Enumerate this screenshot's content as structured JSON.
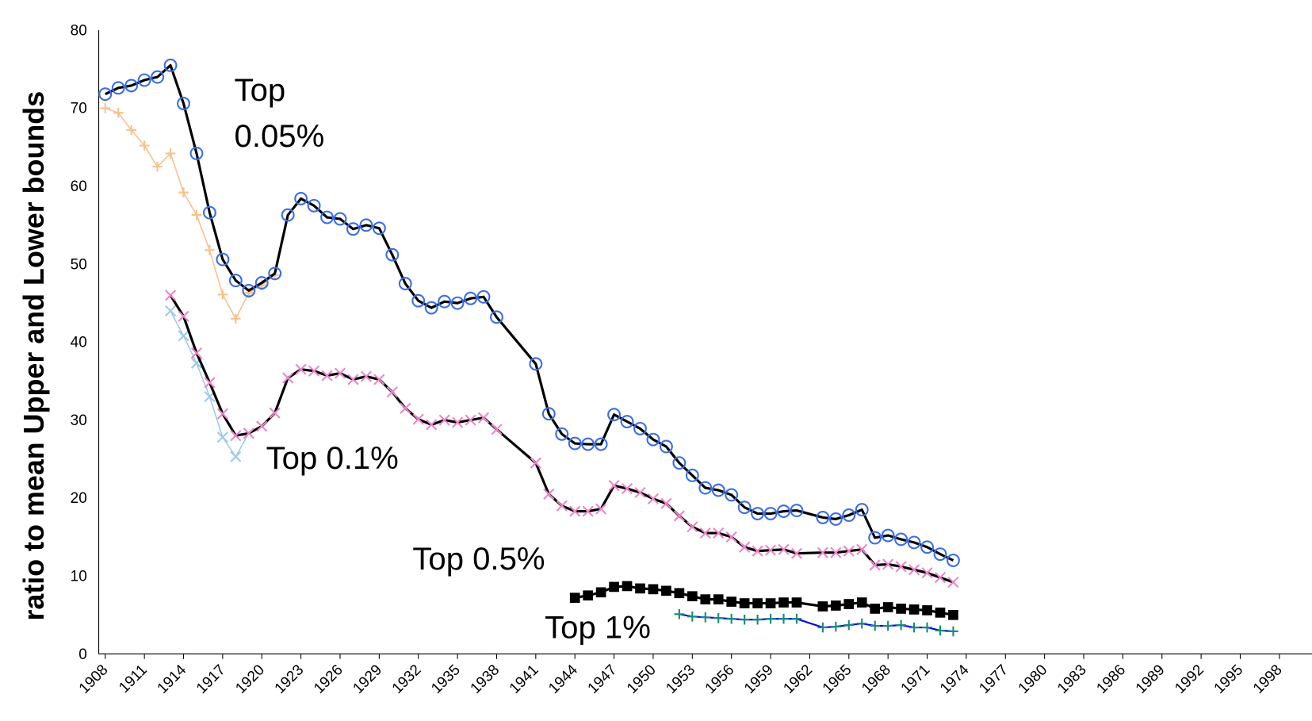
{
  "chart_data": {
    "type": "line",
    "y_label": "ratio to mean Upper and Lower bounds",
    "annotations": [
      [
        "Top",
        "0.05%"
      ],
      [
        "Top 0.1%"
      ],
      [
        "Top 0.5%"
      ],
      [
        "Top 1%"
      ]
    ],
    "xlim": [
      1907.5,
      2000.5
    ],
    "xticks": [
      1908,
      1911,
      1914,
      1917,
      1920,
      1923,
      1926,
      1929,
      1932,
      1935,
      1938,
      1941,
      1944,
      1947,
      1950,
      1953,
      1956,
      1959,
      1962,
      1965,
      1968,
      1971,
      1974,
      1977,
      1980,
      1983,
      1986,
      1989,
      1992,
      1995,
      1998
    ],
    "ylim": [
      0,
      80
    ],
    "yticks": [
      0,
      10,
      20,
      30,
      40,
      50,
      60,
      70,
      80
    ],
    "grid": true,
    "series": [
      {
        "color": "#f9c08c",
        "marker": "plus",
        "marker_color": "#f9c08c",
        "line_width": 1.5,
        "x": [
          1908,
          1909,
          1910,
          1911,
          1912,
          1913,
          1914,
          1915,
          1916,
          1917,
          1918,
          1919,
          1920,
          1921
        ],
        "values": [
          70.0,
          69.4,
          67.2,
          65.2,
          62.5,
          64.2,
          59.2,
          56.3,
          51.8,
          46.1,
          43.0,
          46.3,
          47.3,
          48.6
        ]
      },
      {
        "color": "#9ccbe8",
        "marker": "x",
        "marker_color": "#9ccbe8",
        "line_width": 1.5,
        "x": [
          1913,
          1914,
          1915,
          1916,
          1917,
          1918,
          1919
        ],
        "values": [
          44.0,
          40.8,
          37.3,
          33.0,
          27.8,
          25.3,
          28.3
        ]
      },
      {
        "color": "#000000",
        "marker": "circle",
        "marker_color": "#3a6ee8",
        "line_width": 3,
        "x": [
          1908,
          1909,
          1910,
          1911,
          1912,
          1913,
          1914,
          1915,
          1916,
          1917,
          1918,
          1919,
          1920,
          1921,
          1922,
          1923,
          1924,
          1925,
          1926,
          1927,
          1928,
          1929,
          1930,
          1931,
          1932,
          1933,
          1934,
          1935,
          1936,
          1937,
          1938,
          1941,
          1942,
          1943,
          1944,
          1945,
          1946,
          1947,
          1948,
          1949,
          1950,
          1951,
          1952,
          1953,
          1954,
          1955,
          1956,
          1957,
          1958,
          1959,
          1960,
          1961,
          1963,
          1964,
          1965,
          1966,
          1967,
          1968,
          1969,
          1970,
          1971,
          1972,
          1973
        ],
        "values": [
          71.8,
          72.6,
          72.9,
          73.6,
          74.0,
          75.5,
          70.6,
          64.2,
          56.6,
          50.6,
          47.9,
          46.6,
          47.6,
          48.8,
          56.3,
          58.4,
          57.5,
          56.0,
          55.8,
          54.5,
          55.0,
          54.6,
          51.2,
          47.5,
          45.3,
          44.4,
          45.2,
          45.0,
          45.6,
          45.8,
          43.2,
          37.2,
          30.8,
          28.2,
          27.0,
          26.9,
          26.9,
          30.7,
          29.8,
          28.9,
          27.5,
          26.6,
          24.5,
          22.9,
          21.3,
          21.0,
          20.4,
          18.8,
          18.0,
          18.0,
          18.3,
          18.4,
          17.5,
          17.3,
          17.8,
          18.5,
          14.9,
          15.2,
          14.7,
          14.3,
          13.7,
          12.8,
          12.0
        ]
      },
      {
        "color": "#000000",
        "marker": "x",
        "marker_color": "#ec86c8",
        "line_width": 3,
        "x": [
          1913,
          1914,
          1915,
          1916,
          1917,
          1918,
          1919,
          1920,
          1921,
          1922,
          1923,
          1924,
          1925,
          1926,
          1927,
          1928,
          1929,
          1930,
          1931,
          1932,
          1933,
          1934,
          1935,
          1936,
          1937,
          1938,
          1941,
          1942,
          1943,
          1944,
          1945,
          1946,
          1947,
          1948,
          1949,
          1950,
          1951,
          1952,
          1953,
          1954,
          1955,
          1956,
          1957,
          1958,
          1959,
          1960,
          1961,
          1963,
          1964,
          1965,
          1966,
          1967,
          1968,
          1969,
          1970,
          1971,
          1972,
          1973
        ],
        "values": [
          46.0,
          43.3,
          38.6,
          34.8,
          30.8,
          28.0,
          28.3,
          29.2,
          30.9,
          35.4,
          36.5,
          36.3,
          35.7,
          36.0,
          35.2,
          35.6,
          35.2,
          33.6,
          31.5,
          30.1,
          29.4,
          30.0,
          29.7,
          30.0,
          30.3,
          28.8,
          24.5,
          20.5,
          19.0,
          18.3,
          18.3,
          18.6,
          21.6,
          21.2,
          20.7,
          19.9,
          19.3,
          17.7,
          16.3,
          15.5,
          15.5,
          15.0,
          13.7,
          13.2,
          13.3,
          13.4,
          12.9,
          13.0,
          13.0,
          13.2,
          13.4,
          11.4,
          11.5,
          11.2,
          10.8,
          10.4,
          9.8,
          9.2
        ]
      },
      {
        "color": "#000000",
        "marker": "square",
        "marker_color": "#000000",
        "line_width": 3,
        "x": [
          1944,
          1945,
          1946,
          1947,
          1948,
          1949,
          1950,
          1951,
          1952,
          1953,
          1954,
          1955,
          1956,
          1957,
          1958,
          1959,
          1960,
          1961,
          1963,
          1964,
          1965,
          1966,
          1967,
          1968,
          1969,
          1970,
          1971,
          1972,
          1973
        ],
        "values": [
          7.2,
          7.5,
          7.9,
          8.6,
          8.7,
          8.4,
          8.3,
          8.1,
          7.8,
          7.4,
          7.0,
          7.0,
          6.7,
          6.5,
          6.5,
          6.5,
          6.6,
          6.6,
          6.1,
          6.2,
          6.4,
          6.6,
          5.8,
          6.0,
          5.8,
          5.7,
          5.6,
          5.3,
          5.0
        ]
      },
      {
        "color": "#0000ee",
        "marker": "plus",
        "marker_color": "#1a8a7a",
        "line_width": 2,
        "x": [
          1952,
          1953,
          1954,
          1955,
          1956,
          1957,
          1958,
          1959,
          1960,
          1961,
          1963,
          1964,
          1965,
          1966,
          1967,
          1968,
          1969,
          1970,
          1971,
          1972,
          1973
        ],
        "values": [
          5.1,
          4.8,
          4.7,
          4.6,
          4.5,
          4.4,
          4.4,
          4.5,
          4.5,
          4.5,
          3.4,
          3.5,
          3.7,
          3.9,
          3.6,
          3.6,
          3.7,
          3.4,
          3.4,
          3.0,
          2.9
        ]
      }
    ]
  }
}
